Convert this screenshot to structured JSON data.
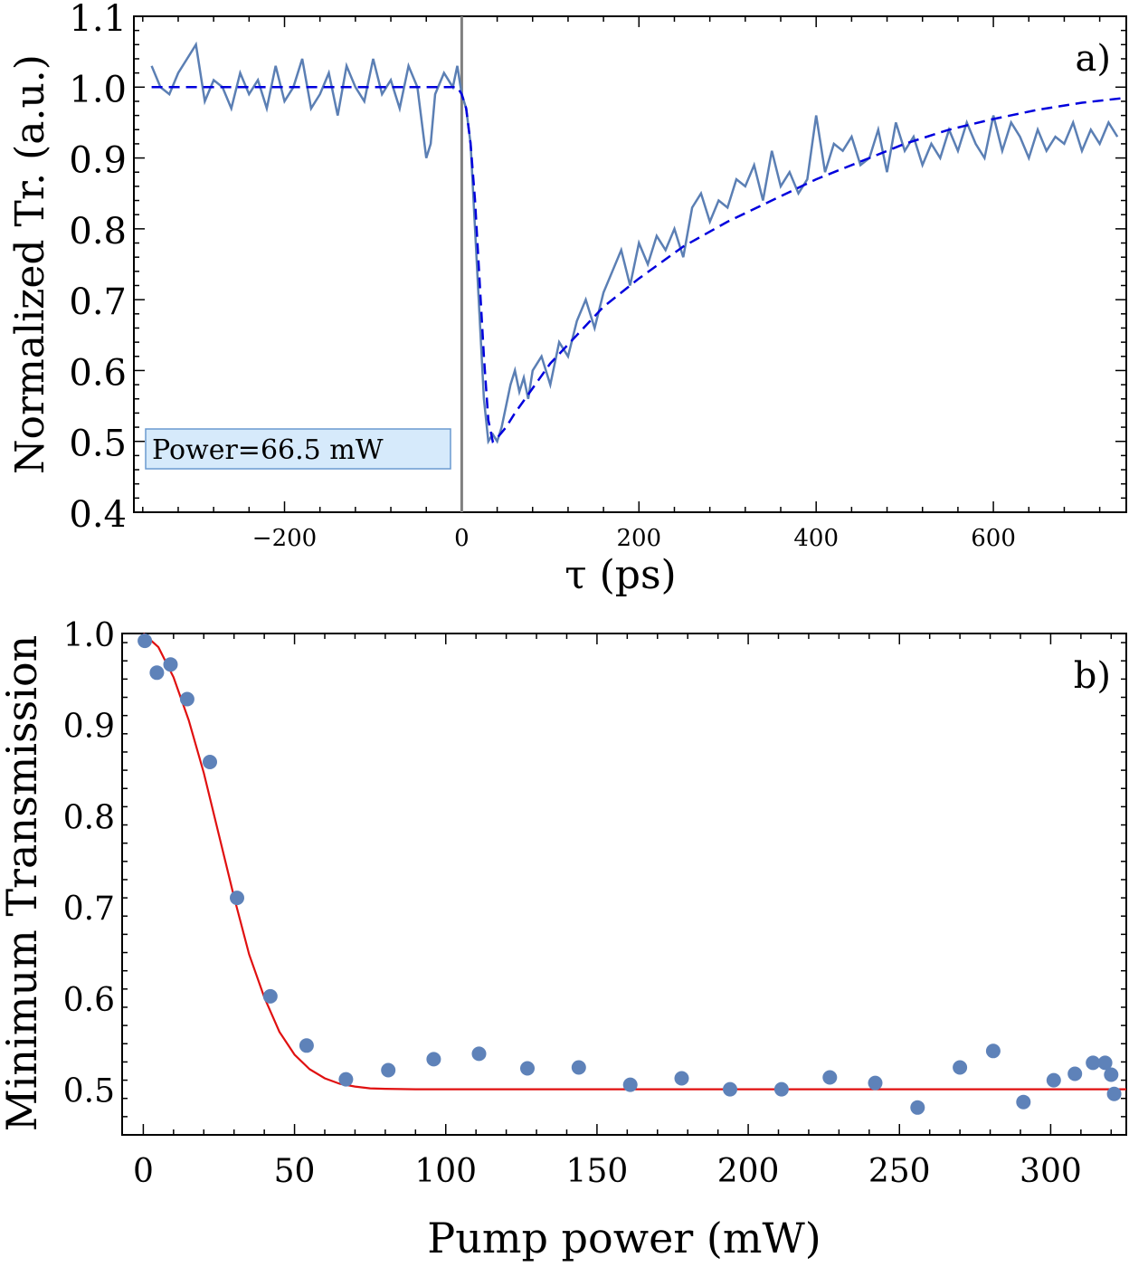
{
  "colors": {
    "data_line": "#5B7FB4",
    "fit_dashed": "#0000DD",
    "scatter": "#5E82B9",
    "fit_red": "#E01010",
    "zero_line": "#808080",
    "annot_bg": "#D6EAFB",
    "annot_border": "#6A9AD0"
  },
  "chart_data": [
    {
      "panel": "a)",
      "type": "line",
      "xlabel": "τ (ps)",
      "ylabel": "Normalized Tr. (a.u.)",
      "xlim": [
        -370,
        750
      ],
      "ylim": [
        0.4,
        1.1
      ],
      "xticks": [
        -200,
        0,
        200,
        400,
        600
      ],
      "xtick_labels": [
        "−200",
        "0",
        "200",
        "400",
        "600"
      ],
      "yticks": [
        0.4,
        0.5,
        0.6,
        0.7,
        0.8,
        0.9,
        1.0,
        1.1
      ],
      "ytick_labels": [
        "0.4",
        "0.5",
        "0.6",
        "0.7",
        "0.8",
        "0.9",
        "1.0",
        "1.1"
      ],
      "annotation": "Power=66.5 mW",
      "vline_x": 0,
      "series": [
        {
          "style": "solid",
          "x": [
            -350,
            -340,
            -330,
            -320,
            -310,
            -300,
            -290,
            -280,
            -270,
            -260,
            -250,
            -240,
            -230,
            -220,
            -210,
            -200,
            -190,
            -180,
            -170,
            -160,
            -150,
            -140,
            -130,
            -120,
            -110,
            -100,
            -90,
            -80,
            -70,
            -60,
            -50,
            -40,
            -35,
            -30,
            -20,
            -10,
            -5,
            0,
            5,
            10,
            15,
            20,
            25,
            30,
            35,
            40,
            45,
            50,
            55,
            60,
            65,
            70,
            75,
            80,
            90,
            100,
            110,
            120,
            130,
            140,
            150,
            160,
            170,
            180,
            190,
            200,
            210,
            220,
            230,
            240,
            250,
            260,
            270,
            280,
            290,
            300,
            310,
            320,
            330,
            340,
            350,
            360,
            370,
            380,
            390,
            400,
            410,
            420,
            430,
            440,
            450,
            460,
            470,
            480,
            490,
            500,
            510,
            520,
            530,
            540,
            550,
            560,
            570,
            580,
            590,
            600,
            610,
            620,
            630,
            640,
            650,
            660,
            670,
            680,
            690,
            700,
            710,
            720,
            730,
            740
          ],
          "y": [
            1.03,
            1.0,
            0.99,
            1.02,
            1.04,
            1.06,
            0.98,
            1.01,
            1.0,
            0.97,
            1.02,
            0.99,
            1.01,
            0.97,
            1.03,
            0.98,
            1.0,
            1.04,
            0.97,
            0.99,
            1.02,
            0.96,
            1.03,
            1.0,
            0.98,
            1.04,
            0.99,
            1.01,
            0.97,
            1.03,
            1.0,
            0.9,
            0.92,
            0.99,
            1.02,
            1.0,
            1.03,
            0.99,
            0.97,
            0.92,
            0.8,
            0.68,
            0.56,
            0.5,
            0.51,
            0.5,
            0.52,
            0.55,
            0.58,
            0.6,
            0.57,
            0.59,
            0.56,
            0.6,
            0.62,
            0.58,
            0.64,
            0.62,
            0.67,
            0.7,
            0.66,
            0.71,
            0.74,
            0.77,
            0.72,
            0.78,
            0.75,
            0.79,
            0.77,
            0.8,
            0.76,
            0.83,
            0.85,
            0.81,
            0.84,
            0.83,
            0.87,
            0.86,
            0.89,
            0.84,
            0.91,
            0.86,
            0.88,
            0.85,
            0.87,
            0.96,
            0.88,
            0.92,
            0.91,
            0.93,
            0.89,
            0.9,
            0.94,
            0.88,
            0.95,
            0.91,
            0.93,
            0.89,
            0.92,
            0.9,
            0.94,
            0.91,
            0.95,
            0.92,
            0.9,
            0.96,
            0.91,
            0.95,
            0.93,
            0.9,
            0.94,
            0.91,
            0.93,
            0.92,
            0.95,
            0.91,
            0.94,
            0.92,
            0.95,
            0.93
          ]
        },
        {
          "style": "dashed",
          "x": [
            -350,
            -300,
            -200,
            -100,
            -20,
            -5,
            0,
            5,
            10,
            15,
            20,
            25,
            30,
            35,
            40,
            50,
            60,
            80,
            100,
            130,
            160,
            200,
            250,
            300,
            350,
            400,
            450,
            500,
            550,
            600,
            650,
            700,
            750
          ],
          "y": [
            1.0,
            1.0,
            1.0,
            1.0,
            1.0,
            1.0,
            0.99,
            0.97,
            0.92,
            0.84,
            0.73,
            0.62,
            0.53,
            0.5,
            0.505,
            0.52,
            0.54,
            0.575,
            0.61,
            0.65,
            0.69,
            0.73,
            0.775,
            0.81,
            0.84,
            0.87,
            0.895,
            0.92,
            0.94,
            0.955,
            0.968,
            0.978,
            0.985
          ]
        }
      ]
    },
    {
      "panel": "b)",
      "type": "scatter",
      "xlabel": "Pump power (mW)",
      "ylabel": "Minimum Transmission",
      "xlim": [
        -7,
        325
      ],
      "ylim": [
        0.45,
        1.0
      ],
      "xticks": [
        0,
        50,
        100,
        150,
        200,
        250,
        300
      ],
      "xtick_labels": [
        "0",
        "50",
        "100",
        "150",
        "200",
        "250",
        "300"
      ],
      "yticks": [
        0.5,
        0.6,
        0.7,
        0.8,
        0.9,
        1.0
      ],
      "ytick_labels": [
        "0.5",
        "0.6",
        "0.7",
        "0.8",
        "0.9",
        "1.0"
      ],
      "series": [
        {
          "style": "points",
          "x": [
            0.5,
            4.5,
            9,
            14.5,
            22,
            31,
            42,
            54,
            67,
            81,
            96,
            111,
            127,
            144,
            161,
            178,
            194,
            211,
            227,
            242,
            256,
            270,
            281,
            291,
            301,
            308,
            314,
            318,
            320,
            321
          ],
          "y": [
            0.992,
            0.957,
            0.966,
            0.928,
            0.859,
            0.71,
            0.602,
            0.548,
            0.511,
            0.521,
            0.533,
            0.539,
            0.523,
            0.524,
            0.505,
            0.512,
            0.5,
            0.5,
            0.513,
            0.507,
            0.48,
            0.524,
            0.542,
            0.486,
            0.51,
            0.517,
            0.529,
            0.529,
            0.516,
            0.495
          ]
        },
        {
          "style": "fit",
          "x": [
            0,
            5,
            10,
            15,
            20,
            25,
            30,
            35,
            40,
            45,
            50,
            55,
            60,
            65,
            70,
            75,
            80,
            90,
            100,
            120,
            150,
            200,
            250,
            300,
            325
          ],
          "y": [
            1.0,
            0.985,
            0.952,
            0.905,
            0.847,
            0.779,
            0.711,
            0.648,
            0.601,
            0.563,
            0.538,
            0.522,
            0.512,
            0.506,
            0.503,
            0.501,
            0.5005,
            0.5,
            0.5,
            0.5,
            0.5,
            0.5,
            0.5,
            0.5,
            0.5
          ]
        }
      ]
    }
  ]
}
